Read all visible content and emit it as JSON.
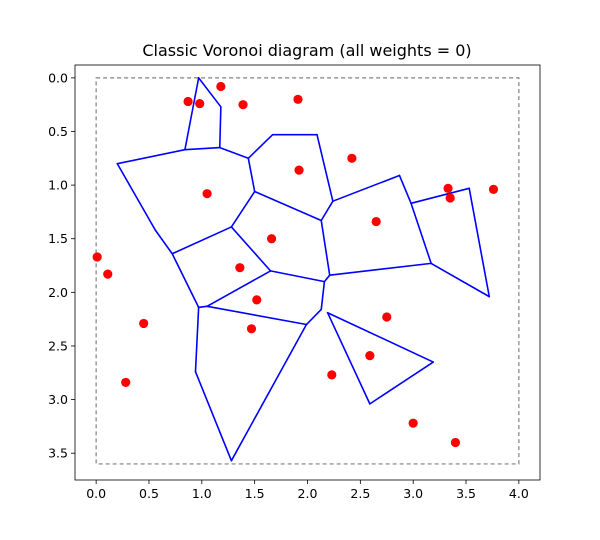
{
  "chart_data": {
    "type": "scatter",
    "title": "Classic Voronoi diagram (all weights = 0)",
    "xlabel": "",
    "ylabel": "",
    "xlim": [
      -0.2,
      4.2
    ],
    "ylim": [
      3.75,
      -0.12
    ],
    "y_inverted": true,
    "x_ticks": [
      "0.0",
      "0.5",
      "1.0",
      "1.5",
      "2.0",
      "2.5",
      "3.0",
      "3.5",
      "4.0"
    ],
    "y_ticks": [
      "0.0",
      "0.5",
      "1.0",
      "1.5",
      "2.0",
      "2.5",
      "3.0",
      "3.5"
    ],
    "grid": false,
    "colors": {
      "points": "#ff0000",
      "edges": "#0000ff",
      "bounds": "#808080"
    },
    "bounding_box": {
      "x": [
        0.0,
        4.0
      ],
      "y": [
        0.0,
        3.6
      ],
      "style": "dashed"
    },
    "sites": [
      [
        0.87,
        0.22
      ],
      [
        0.98,
        0.24
      ],
      [
        1.18,
        0.08
      ],
      [
        1.39,
        0.25
      ],
      [
        1.91,
        0.2
      ],
      [
        2.42,
        0.75
      ],
      [
        1.92,
        0.86
      ],
      [
        1.05,
        1.08
      ],
      [
        1.66,
        1.5
      ],
      [
        2.65,
        1.34
      ],
      [
        3.33,
        1.03
      ],
      [
        3.35,
        1.12
      ],
      [
        3.76,
        1.04
      ],
      [
        0.01,
        1.67
      ],
      [
        0.11,
        1.83
      ],
      [
        1.36,
        1.77
      ],
      [
        1.52,
        2.07
      ],
      [
        0.45,
        2.29
      ],
      [
        1.47,
        2.34
      ],
      [
        2.75,
        2.23
      ],
      [
        2.59,
        2.59
      ],
      [
        2.23,
        2.77
      ],
      [
        0.28,
        2.84
      ],
      [
        3.0,
        3.22
      ],
      [
        3.4,
        3.4
      ]
    ],
    "edges": [
      [
        [
          0.97,
          0.0
        ],
        [
          1.18,
          0.27
        ]
      ],
      [
        [
          1.18,
          0.27
        ],
        [
          1.17,
          0.65
        ]
      ],
      [
        [
          0.97,
          0.0
        ],
        [
          0.84,
          0.67
        ]
      ],
      [
        [
          0.84,
          0.67
        ],
        [
          1.17,
          0.65
        ]
      ],
      [
        [
          0.84,
          0.67
        ],
        [
          0.2,
          0.8
        ]
      ],
      [
        [
          0.2,
          0.8
        ],
        [
          0.56,
          1.42
        ]
      ],
      [
        [
          0.56,
          1.42
        ],
        [
          0.72,
          1.64
        ]
      ],
      [
        [
          1.17,
          0.65
        ],
        [
          1.44,
          0.75
        ]
      ],
      [
        [
          1.44,
          0.75
        ],
        [
          1.67,
          0.53
        ]
      ],
      [
        [
          1.67,
          0.53
        ],
        [
          2.09,
          0.53
        ]
      ],
      [
        [
          2.09,
          0.53
        ],
        [
          2.24,
          1.15
        ]
      ],
      [
        [
          1.44,
          0.75
        ],
        [
          1.5,
          1.06
        ]
      ],
      [
        [
          1.5,
          1.06
        ],
        [
          2.13,
          1.33
        ]
      ],
      [
        [
          2.13,
          1.33
        ],
        [
          2.24,
          1.15
        ]
      ],
      [
        [
          2.24,
          1.15
        ],
        [
          2.87,
          0.91
        ]
      ],
      [
        [
          2.87,
          0.91
        ],
        [
          2.98,
          1.17
        ]
      ],
      [
        [
          2.98,
          1.17
        ],
        [
          3.53,
          1.03
        ]
      ],
      [
        [
          3.53,
          1.03
        ],
        [
          3.72,
          2.04
        ]
      ],
      [
        [
          3.72,
          2.04
        ],
        [
          3.17,
          1.73
        ]
      ],
      [
        [
          3.17,
          1.73
        ],
        [
          2.98,
          1.17
        ]
      ],
      [
        [
          3.17,
          1.73
        ],
        [
          2.21,
          1.84
        ]
      ],
      [
        [
          2.21,
          1.84
        ],
        [
          2.13,
          1.33
        ]
      ],
      [
        [
          1.5,
          1.06
        ],
        [
          1.28,
          1.39
        ]
      ],
      [
        [
          1.28,
          1.39
        ],
        [
          0.72,
          1.64
        ]
      ],
      [
        [
          0.72,
          1.64
        ],
        [
          0.97,
          2.14
        ]
      ],
      [
        [
          1.28,
          1.39
        ],
        [
          1.65,
          1.8
        ]
      ],
      [
        [
          1.65,
          1.8
        ],
        [
          2.16,
          1.9
        ]
      ],
      [
        [
          2.16,
          1.9
        ],
        [
          2.21,
          1.84
        ]
      ],
      [
        [
          2.16,
          1.9
        ],
        [
          2.13,
          2.16
        ]
      ],
      [
        [
          1.65,
          1.8
        ],
        [
          1.05,
          2.13
        ]
      ],
      [
        [
          0.97,
          2.14
        ],
        [
          1.05,
          2.13
        ]
      ],
      [
        [
          1.05,
          2.13
        ],
        [
          1.99,
          2.3
        ]
      ],
      [
        [
          1.99,
          2.3
        ],
        [
          2.13,
          2.16
        ]
      ],
      [
        [
          0.97,
          2.14
        ],
        [
          0.94,
          2.74
        ]
      ],
      [
        [
          0.94,
          2.74
        ],
        [
          1.28,
          3.57
        ]
      ],
      [
        [
          1.28,
          3.57
        ],
        [
          1.99,
          2.3
        ]
      ],
      [
        [
          2.19,
          2.19
        ],
        [
          3.19,
          2.65
        ]
      ],
      [
        [
          3.19,
          2.65
        ],
        [
          2.59,
          3.04
        ]
      ],
      [
        [
          2.59,
          3.04
        ],
        [
          2.19,
          2.19
        ]
      ]
    ]
  }
}
